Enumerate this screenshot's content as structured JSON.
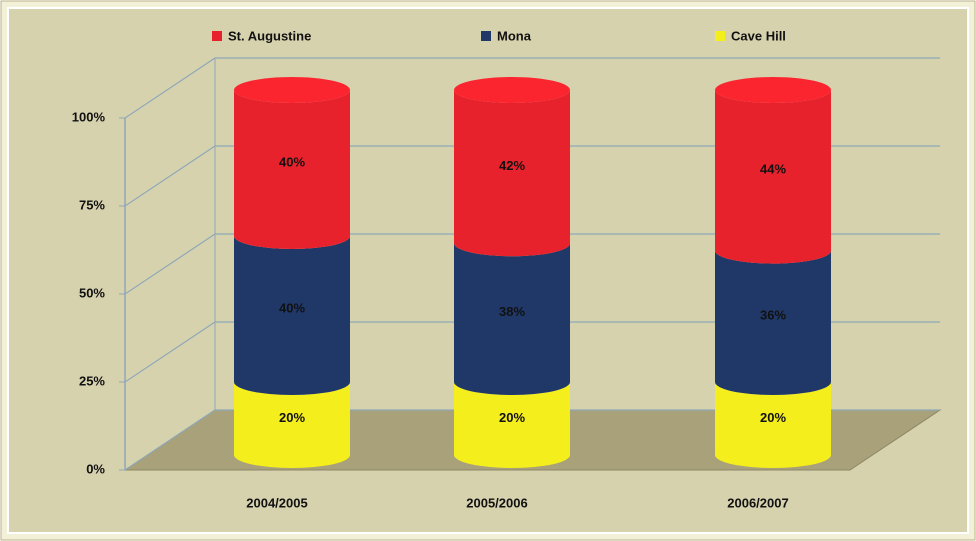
{
  "chart_data": {
    "type": "stacked_cylinder",
    "categories": [
      "2004/2005",
      "2005/2006",
      "2006/2007"
    ],
    "series": [
      {
        "name": "St. Augustine",
        "color": "#e8222c",
        "label_color": "#111111",
        "values": [
          40,
          42,
          44
        ],
        "value_labels": [
          "40%",
          "42%",
          "44%"
        ]
      },
      {
        "name": "Mona",
        "color": "#1f3868",
        "label_color": "#c8d2f0",
        "values": [
          40,
          38,
          36
        ],
        "value_labels": [
          "40%",
          "38%",
          "36%"
        ]
      },
      {
        "name": "Cave Hill",
        "color": "#f4ee1c",
        "label_color": "#111111",
        "values": [
          20,
          20,
          20
        ],
        "value_labels": [
          "20%",
          "20%",
          "20%"
        ]
      }
    ],
    "ylim": [
      0,
      100
    ],
    "yticks": [
      {
        "value": 0,
        "label": "0%"
      },
      {
        "value": 25,
        "label": "25%"
      },
      {
        "value": 50,
        "label": "50%"
      },
      {
        "value": 75,
        "label": "75%"
      },
      {
        "value": 100,
        "label": "100%"
      }
    ],
    "grid": true,
    "legend": "top"
  }
}
